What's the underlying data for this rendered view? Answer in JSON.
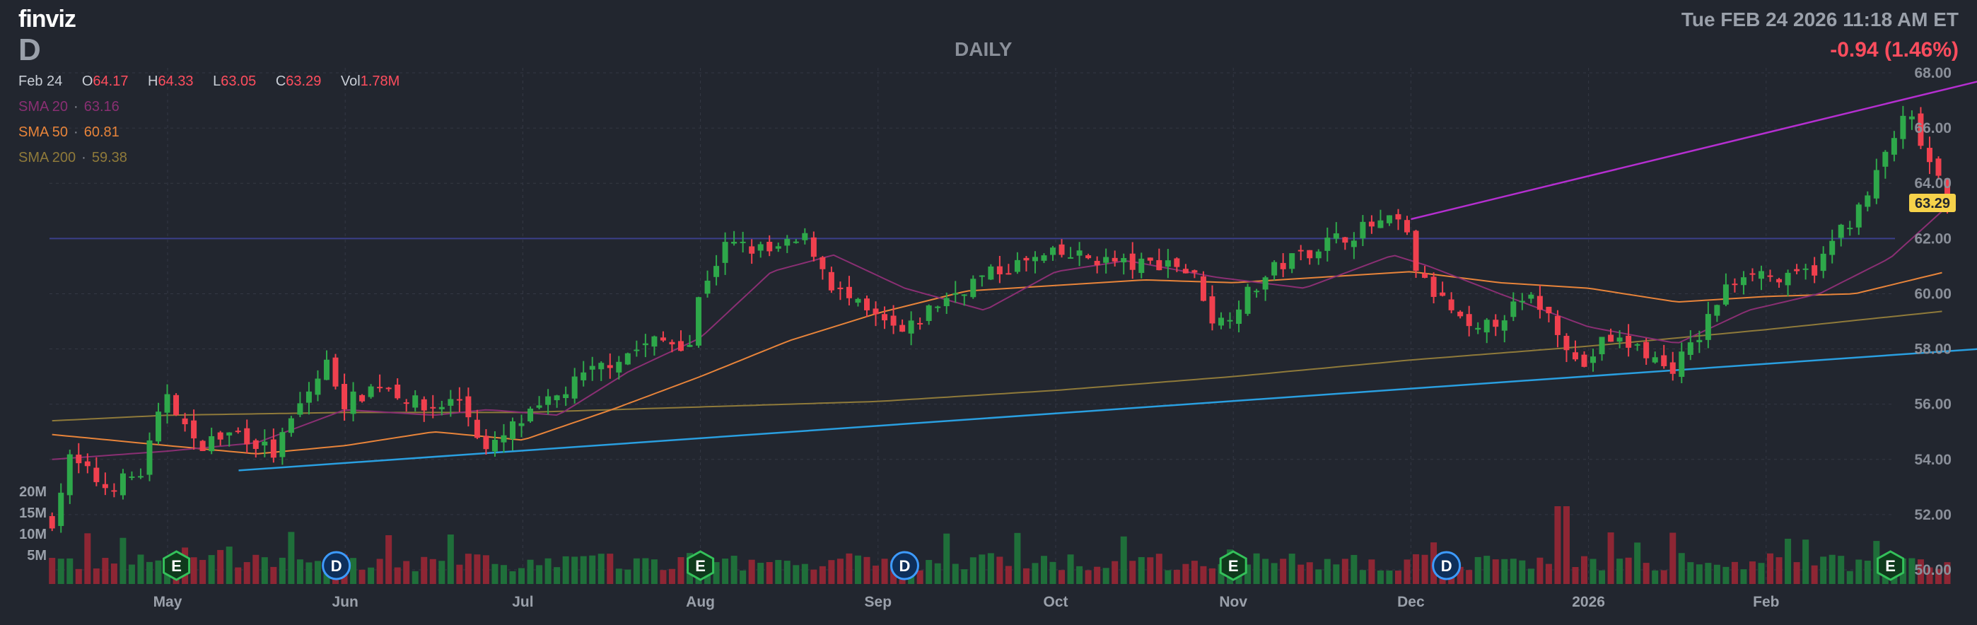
{
  "header": {
    "logo": "finviz",
    "ticker": "D",
    "period": "DAILY",
    "datetime": "Tue FEB 24 2026 11:18 AM ET",
    "change": "-0.94 (1.46%)"
  },
  "ohlc": {
    "date": "Feb 24",
    "o_label": "O",
    "o": "64.17",
    "h_label": "H",
    "h": "64.33",
    "l_label": "L",
    "l": "63.05",
    "c_label": "C",
    "c": "63.29",
    "vol_label": "Vol",
    "vol": "1.78M"
  },
  "sma": [
    {
      "label": "SMA 20",
      "value": "63.16",
      "color": "#8a2f73"
    },
    {
      "label": "SMA 50",
      "value": "60.81",
      "color": "#e8843a"
    },
    {
      "label": "SMA 200",
      "value": "59.38",
      "color": "#8f7a3a"
    }
  ],
  "colors": {
    "up": "#2ea84a",
    "down": "#f0404e",
    "vol_up": "#1f6f3a",
    "vol_down": "#8e2634",
    "grid": "#343844",
    "sma20": "#8a2f73",
    "sma50": "#e8843a",
    "sma200": "#8f7a3a",
    "trend_upper": "#b52fd0",
    "trend_lower": "#2a9fe0",
    "hline": "#3b3f8a",
    "last_price_bg": "#f6d24a"
  },
  "chart_data": {
    "type": "candlestick",
    "ylim": [
      50,
      68
    ],
    "y_ticks": [
      "68.00",
      "66.00",
      "64.00",
      "62.00",
      "60.00",
      "58.00",
      "56.00",
      "54.00",
      "52.00",
      "50.00"
    ],
    "x_labels": [
      "May",
      "Jun",
      "Jul",
      "Aug",
      "Sep",
      "Oct",
      "Nov",
      "Dec",
      "2026",
      "Feb"
    ],
    "volume_ticks": [
      "20M",
      "15M",
      "10M",
      "5M"
    ],
    "last_price": "63.29",
    "horizontal_line": 62.0,
    "events": [
      {
        "label": "E",
        "kind": "earnings",
        "month_index": 0.05
      },
      {
        "label": "D",
        "kind": "dividend",
        "month_index": 0.95
      },
      {
        "label": "E",
        "kind": "earnings",
        "month_index": 3.0
      },
      {
        "label": "D",
        "kind": "dividend",
        "month_index": 4.15
      },
      {
        "label": "E",
        "kind": "earnings",
        "month_index": 6.0
      },
      {
        "label": "D",
        "kind": "dividend",
        "month_index": 7.2
      },
      {
        "label": "E",
        "kind": "earnings",
        "month_index": 9.7
      }
    ],
    "close_anchors": [
      [
        -0.65,
        51.8
      ],
      [
        -0.55,
        54.0
      ],
      [
        -0.35,
        53.0
      ],
      [
        -0.15,
        53.5
      ],
      [
        0.0,
        56.5
      ],
      [
        0.15,
        54.5
      ],
      [
        0.4,
        55.0
      ],
      [
        0.6,
        54.2
      ],
      [
        0.75,
        56.0
      ],
      [
        0.9,
        57.5
      ],
      [
        1.0,
        56.0
      ],
      [
        1.2,
        56.8
      ],
      [
        1.45,
        55.8
      ],
      [
        1.65,
        56.2
      ],
      [
        1.8,
        54.2
      ],
      [
        1.95,
        55.2
      ],
      [
        2.1,
        55.8
      ],
      [
        2.3,
        56.8
      ],
      [
        2.5,
        57.6
      ],
      [
        2.75,
        58.3
      ],
      [
        2.95,
        58.2
      ],
      [
        3.0,
        60.2
      ],
      [
        3.15,
        61.8
      ],
      [
        3.4,
        61.5
      ],
      [
        3.6,
        62.0
      ],
      [
        3.75,
        60.2
      ],
      [
        3.95,
        59.2
      ],
      [
        4.15,
        58.5
      ],
      [
        4.3,
        59.5
      ],
      [
        4.55,
        60.5
      ],
      [
        4.75,
        61.0
      ],
      [
        5.0,
        61.4
      ],
      [
        5.2,
        61.3
      ],
      [
        5.45,
        61.0
      ],
      [
        5.65,
        61.2
      ],
      [
        5.8,
        60.5
      ],
      [
        5.9,
        58.8
      ],
      [
        6.05,
        59.8
      ],
      [
        6.25,
        61.0
      ],
      [
        6.5,
        61.8
      ],
      [
        6.8,
        62.5
      ],
      [
        6.95,
        62.6
      ],
      [
        7.05,
        60.5
      ],
      [
        7.2,
        59.6
      ],
      [
        7.35,
        58.4
      ],
      [
        7.55,
        59.4
      ],
      [
        7.7,
        59.8
      ],
      [
        7.85,
        58.6
      ],
      [
        7.95,
        57.2
      ],
      [
        8.1,
        58.4
      ],
      [
        8.3,
        58.0
      ],
      [
        8.45,
        57.2
      ],
      [
        8.6,
        58.2
      ],
      [
        8.75,
        60.0
      ],
      [
        8.9,
        61.0
      ],
      [
        9.1,
        60.4
      ],
      [
        9.3,
        61.0
      ],
      [
        9.4,
        62.2
      ],
      [
        9.55,
        63.2
      ],
      [
        9.7,
        65.5
      ],
      [
        9.8,
        66.5
      ],
      [
        9.9,
        65.0
      ],
      [
        10.02,
        63.29
      ]
    ],
    "sma20_anchors": [
      [
        -0.65,
        54.0
      ],
      [
        0.0,
        54.3
      ],
      [
        0.5,
        54.6
      ],
      [
        1.0,
        55.8
      ],
      [
        1.5,
        55.6
      ],
      [
        1.8,
        55.8
      ],
      [
        2.2,
        55.6
      ],
      [
        2.6,
        57.2
      ],
      [
        3.0,
        58.4
      ],
      [
        3.4,
        60.8
      ],
      [
        3.75,
        61.4
      ],
      [
        4.15,
        60.2
      ],
      [
        4.6,
        59.4
      ],
      [
        5.0,
        60.8
      ],
      [
        5.4,
        61.2
      ],
      [
        5.9,
        60.6
      ],
      [
        6.4,
        60.2
      ],
      [
        6.9,
        61.4
      ],
      [
        7.1,
        61.0
      ],
      [
        7.5,
        60.0
      ],
      [
        8.0,
        58.8
      ],
      [
        8.5,
        58.2
      ],
      [
        8.9,
        59.4
      ],
      [
        9.3,
        60.0
      ],
      [
        9.7,
        61.3
      ],
      [
        10.02,
        63.16
      ]
    ],
    "sma50_anchors": [
      [
        -0.65,
        54.9
      ],
      [
        0.0,
        54.5
      ],
      [
        0.5,
        54.2
      ],
      [
        1.0,
        54.5
      ],
      [
        1.5,
        55.0
      ],
      [
        2.0,
        54.7
      ],
      [
        2.5,
        55.8
      ],
      [
        3.0,
        57.0
      ],
      [
        3.5,
        58.3
      ],
      [
        4.0,
        59.3
      ],
      [
        4.5,
        60.1
      ],
      [
        5.0,
        60.3
      ],
      [
        5.5,
        60.5
      ],
      [
        6.0,
        60.4
      ],
      [
        6.5,
        60.6
      ],
      [
        7.0,
        60.8
      ],
      [
        7.5,
        60.4
      ],
      [
        8.0,
        60.2
      ],
      [
        8.5,
        59.7
      ],
      [
        9.0,
        59.9
      ],
      [
        9.5,
        60.0
      ],
      [
        10.02,
        60.81
      ]
    ],
    "sma200_anchors": [
      [
        -0.65,
        55.4
      ],
      [
        0.0,
        55.6
      ],
      [
        1.0,
        55.7
      ],
      [
        2.0,
        55.7
      ],
      [
        3.0,
        55.9
      ],
      [
        4.0,
        56.1
      ],
      [
        5.0,
        56.5
      ],
      [
        6.0,
        57.0
      ],
      [
        7.0,
        57.6
      ],
      [
        8.0,
        58.1
      ],
      [
        9.0,
        58.7
      ],
      [
        10.02,
        59.38
      ]
    ],
    "trend_lower": [
      [
        0.4,
        53.6
      ],
      [
        10.2,
        58.0
      ]
    ],
    "trend_upper": [
      [
        7.0,
        62.7
      ],
      [
        10.2,
        67.7
      ]
    ]
  }
}
